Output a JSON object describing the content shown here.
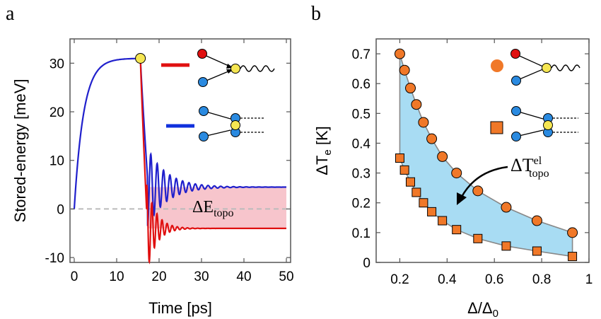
{
  "chart_data": [
    {
      "panel": "a",
      "type": "line",
      "xlabel": "Time [ps]",
      "ylabel": "Stored-energy [meV]",
      "xlim": [
        -1,
        51
      ],
      "ylim": [
        -11,
        35
      ],
      "xticks": [
        "0",
        "10",
        "20",
        "30",
        "40",
        "50"
      ],
      "yticks": [
        "-10",
        "0",
        "10",
        "20",
        "30"
      ],
      "annotation": "ΔE",
      "annotation_sub": "topo",
      "series": [
        {
          "color": "#2020cc",
          "x": [
            0,
            0.5,
            1,
            2,
            3,
            4,
            5,
            6,
            7,
            8,
            9,
            10,
            11,
            12,
            13,
            14,
            15,
            15.6,
            16,
            17,
            18,
            19,
            20,
            22,
            25,
            28,
            30,
            35,
            40,
            45,
            50
          ],
          "y": [
            0,
            6,
            12,
            19.5,
            24,
            26.8,
            28.5,
            29.5,
            30.1,
            30.5,
            30.7,
            30.8,
            30.9,
            30.95,
            31,
            31,
            31,
            31,
            26,
            8,
            3,
            4.8,
            4,
            4.6,
            4.5,
            4.5,
            4.5,
            4.5,
            4.5,
            4.5,
            4.5
          ]
        },
        {
          "color": "#e01010",
          "x": [
            15.6,
            16,
            17,
            18,
            19,
            20,
            22,
            25,
            28,
            30,
            35,
            40,
            45,
            50
          ],
          "y": [
            31,
            22,
            2,
            -3,
            -3.5,
            -3.8,
            -3.9,
            -4,
            -4,
            -4,
            -4,
            -4,
            -4,
            -4
          ]
        }
      ]
    },
    {
      "panel": "b",
      "type": "scatter",
      "xlabel": "Δ/Δ",
      "xlabel_sub": "0",
      "ylabel": "ΔT",
      "ylabel_sub": "e",
      "ylabel_unit": " [K]",
      "xlim": [
        0.1,
        1.0
      ],
      "ylim": [
        0,
        0.75
      ],
      "xticks": [
        "0.2",
        "0.4",
        "0.6",
        "0.8",
        "1"
      ],
      "yticks": [
        "0",
        "0.1",
        "0.2",
        "0.3",
        "0.4",
        "0.5",
        "0.6",
        "0.7"
      ],
      "annotation": "ΔT",
      "annotation_sup": "el",
      "annotation_sub": "topo",
      "series": [
        {
          "marker": "circle",
          "color": "#f07828",
          "x": [
            0.2,
            0.22,
            0.245,
            0.27,
            0.3,
            0.335,
            0.38,
            0.44,
            0.53,
            0.65,
            0.78,
            0.93
          ],
          "y": [
            0.7,
            0.645,
            0.585,
            0.53,
            0.47,
            0.415,
            0.355,
            0.3,
            0.24,
            0.185,
            0.14,
            0.1
          ]
        },
        {
          "marker": "square",
          "color": "#f07828",
          "x": [
            0.2,
            0.22,
            0.245,
            0.27,
            0.3,
            0.335,
            0.38,
            0.44,
            0.53,
            0.65,
            0.78,
            0.93
          ],
          "y": [
            0.35,
            0.31,
            0.27,
            0.235,
            0.2,
            0.17,
            0.14,
            0.11,
            0.08,
            0.055,
            0.038,
            0.02
          ]
        }
      ]
    }
  ]
}
